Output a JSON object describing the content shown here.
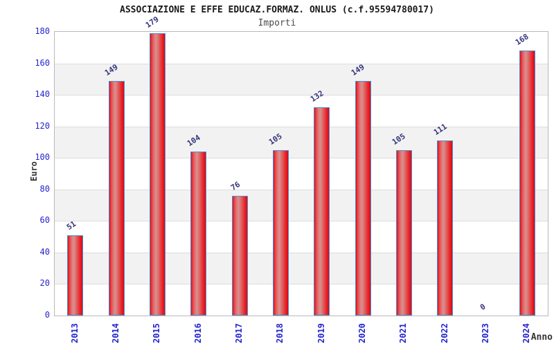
{
  "header": {
    "title": "ASSOCIAZIONE E EFFE EDUCAZ.FORMAZ. ONLUS (c.f.95594780017)",
    "subtitle": "Importi"
  },
  "chart_data": {
    "type": "bar",
    "title": "ASSOCIAZIONE E EFFE EDUCAZ.FORMAZ. ONLUS (c.f.95594780017)",
    "subtitle": "Importi",
    "categories": [
      "2013",
      "2014",
      "2015",
      "2016",
      "2017",
      "2018",
      "2019",
      "2020",
      "2021",
      "2022",
      "2023",
      "2024"
    ],
    "values": [
      51,
      149,
      179,
      104,
      76,
      105,
      132,
      149,
      105,
      111,
      0,
      168
    ],
    "xlabel": "Anno",
    "ylabel": "Euro",
    "ylim": [
      0,
      180
    ],
    "yticks": [
      0,
      20,
      40,
      60,
      80,
      100,
      120,
      140,
      160,
      180
    ],
    "grid": "horizontal-bands",
    "legend": "none",
    "colors": {
      "bar_edge_stroke": "#4a8fd3",
      "bar_red": "#e2151c",
      "bar_highlight": "#d79190",
      "value_label": "#35357e",
      "tick_label": "#2323cf",
      "axis_title": "#333333",
      "band_gray": "#f2f2f2",
      "gridline": "#dcdcdc",
      "frame": "#b9b9b9",
      "title": "#1a1a1a",
      "subtitle": "#4a4a4a"
    }
  }
}
